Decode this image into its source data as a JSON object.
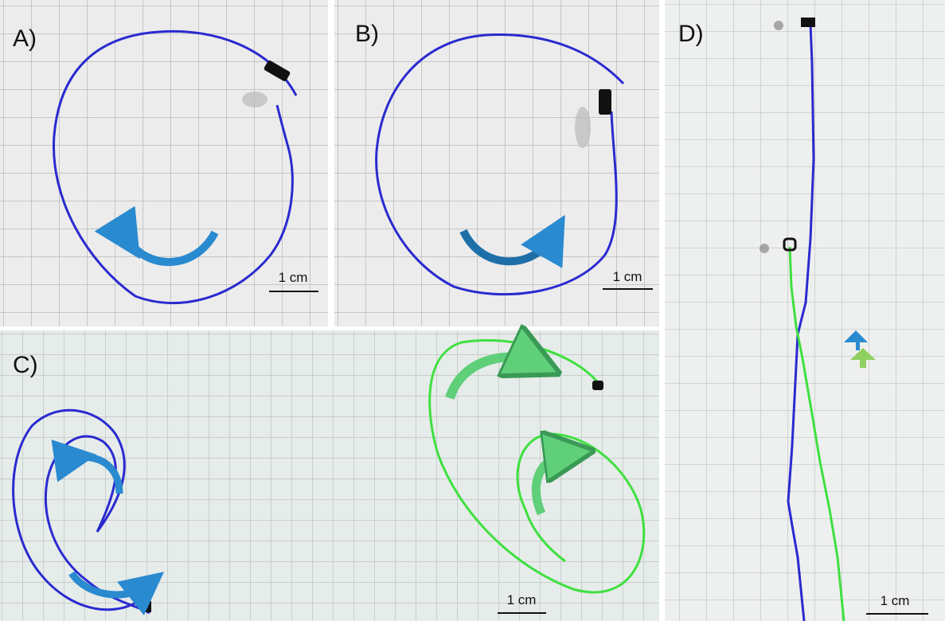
{
  "panels": [
    {
      "label": "A)",
      "scale_label": "1 cm"
    },
    {
      "label": "B)",
      "scale_label": "1 cm"
    },
    {
      "label": "C)",
      "scale_label": "1 cm"
    },
    {
      "label": "D)",
      "scale_label": "1 cm"
    }
  ]
}
